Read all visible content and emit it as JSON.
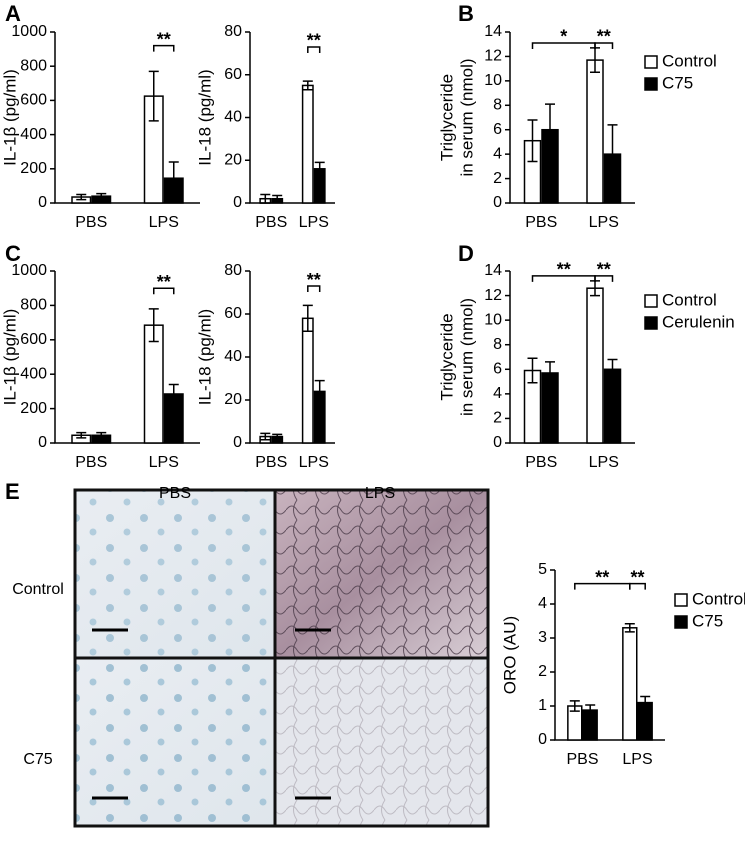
{
  "chart_data": [
    {
      "type": "bar",
      "panel_label": "A",
      "ylabel": "IL-1β (pg/ml)",
      "categories": [
        "PBS",
        "LPS"
      ],
      "ylim": [
        0,
        1000
      ],
      "yticks": [
        0,
        200,
        400,
        600,
        800,
        1000
      ],
      "series": [
        {
          "color": "#ffffff",
          "values": [
            35,
            625
          ],
          "errors": [
            15,
            145
          ]
        },
        {
          "color": "#000000",
          "values": [
            40,
            145
          ],
          "errors": [
            15,
            95
          ]
        }
      ],
      "annotations": [
        {
          "text": "**",
          "y": 920,
          "between": [
            [
              1,
              0
            ],
            [
              1,
              1
            ]
          ]
        }
      ]
    },
    {
      "type": "bar",
      "ylabel": "IL-18 (pg/ml)",
      "categories": [
        "PBS",
        "LPS"
      ],
      "ylim": [
        0,
        80
      ],
      "yticks": [
        0,
        20,
        40,
        60,
        80
      ],
      "series": [
        {
          "color": "#ffffff",
          "values": [
            2,
            55
          ],
          "errors": [
            2,
            2
          ]
        },
        {
          "color": "#000000",
          "values": [
            2,
            16
          ],
          "errors": [
            1.5,
            3
          ]
        }
      ],
      "annotations": [
        {
          "text": "**",
          "y": 73,
          "between": [
            [
              1,
              0
            ],
            [
              1,
              1
            ]
          ]
        }
      ]
    },
    {
      "type": "bar",
      "panel_label": "B",
      "ylabel": [
        "Triglyceride",
        "in serum (nmol)"
      ],
      "categories": [
        "PBS",
        "LPS"
      ],
      "ylim": [
        0,
        14
      ],
      "yticks": [
        0,
        2,
        4,
        6,
        8,
        10,
        12,
        14
      ],
      "series": [
        {
          "name": "Control",
          "color": "#ffffff",
          "values": [
            5.1,
            11.7
          ],
          "errors": [
            1.7,
            1.0
          ]
        },
        {
          "name": "C75",
          "color": "#000000",
          "values": [
            6.0,
            4.0
          ],
          "errors": [
            2.1,
            2.4
          ]
        }
      ],
      "annotations": [
        {
          "text": "*",
          "y": 13.1,
          "between": [
            [
              0,
              0
            ],
            [
              1,
              0
            ]
          ]
        },
        {
          "text": "**",
          "y": 13.1,
          "between": [
            [
              1,
              0
            ],
            [
              1,
              1
            ]
          ]
        }
      ]
    },
    {
      "type": "bar",
      "panel_label": "C",
      "ylabel": "IL-1β (pg/ml)",
      "categories": [
        "PBS",
        "LPS"
      ],
      "ylim": [
        0,
        1000
      ],
      "yticks": [
        0,
        200,
        400,
        600,
        800,
        1000
      ],
      "series": [
        {
          "color": "#ffffff",
          "values": [
            45,
            685
          ],
          "errors": [
            15,
            95
          ]
        },
        {
          "color": "#000000",
          "values": [
            45,
            285
          ],
          "errors": [
            15,
            55
          ]
        }
      ],
      "annotations": [
        {
          "text": "**",
          "y": 900,
          "between": [
            [
              1,
              0
            ],
            [
              1,
              1
            ]
          ]
        }
      ]
    },
    {
      "type": "bar",
      "ylabel": "IL-18 (pg/ml)",
      "categories": [
        "PBS",
        "LPS"
      ],
      "ylim": [
        0,
        80
      ],
      "yticks": [
        0,
        20,
        40,
        60,
        80
      ],
      "series": [
        {
          "color": "#ffffff",
          "values": [
            3,
            58
          ],
          "errors": [
            1.5,
            6
          ]
        },
        {
          "color": "#000000",
          "values": [
            3,
            24
          ],
          "errors": [
            1,
            5
          ]
        }
      ],
      "annotations": [
        {
          "text": "**",
          "y": 73,
          "between": [
            [
              1,
              0
            ],
            [
              1,
              1
            ]
          ]
        }
      ]
    },
    {
      "type": "bar",
      "panel_label": "D",
      "ylabel": [
        "Triglyceride",
        "in serum (nmol)"
      ],
      "categories": [
        "PBS",
        "LPS"
      ],
      "ylim": [
        0,
        14
      ],
      "yticks": [
        0,
        2,
        4,
        6,
        8,
        10,
        12,
        14
      ],
      "series": [
        {
          "name": "Control",
          "color": "#ffffff",
          "values": [
            5.9,
            12.6
          ],
          "errors": [
            1.0,
            0.6
          ]
        },
        {
          "name": "Cerulenin",
          "color": "#000000",
          "values": [
            5.7,
            6.0
          ],
          "errors": [
            0.9,
            0.8
          ]
        }
      ],
      "annotations": [
        {
          "text": "**",
          "y": 13.6,
          "between": [
            [
              0,
              0
            ],
            [
              1,
              0
            ]
          ]
        },
        {
          "text": "**",
          "y": 13.6,
          "between": [
            [
              1,
              0
            ],
            [
              1,
              1
            ]
          ]
        }
      ]
    },
    {
      "type": "bar",
      "ylabel": "ORO (AU)",
      "categories": [
        "PBS",
        "LPS"
      ],
      "ylim": [
        0,
        5
      ],
      "yticks": [
        0,
        1,
        2,
        3,
        4,
        5
      ],
      "series": [
        {
          "name": "Control",
          "color": "#ffffff",
          "values": [
            1.0,
            3.3
          ],
          "errors": [
            0.15,
            0.12
          ]
        },
        {
          "name": "C75",
          "color": "#000000",
          "values": [
            0.88,
            1.1
          ],
          "errors": [
            0.15,
            0.18
          ]
        }
      ],
      "annotations": [
        {
          "text": "**",
          "y": 4.6,
          "between": [
            [
              0,
              0
            ],
            [
              1,
              0
            ]
          ]
        },
        {
          "text": "**",
          "y": 4.6,
          "between": [
            [
              1,
              0
            ],
            [
              1,
              1
            ]
          ]
        }
      ]
    }
  ],
  "image_grid": {
    "panel_label": "E",
    "columns": [
      "PBS",
      "LPS"
    ],
    "rows": [
      "Control",
      "C75"
    ]
  }
}
